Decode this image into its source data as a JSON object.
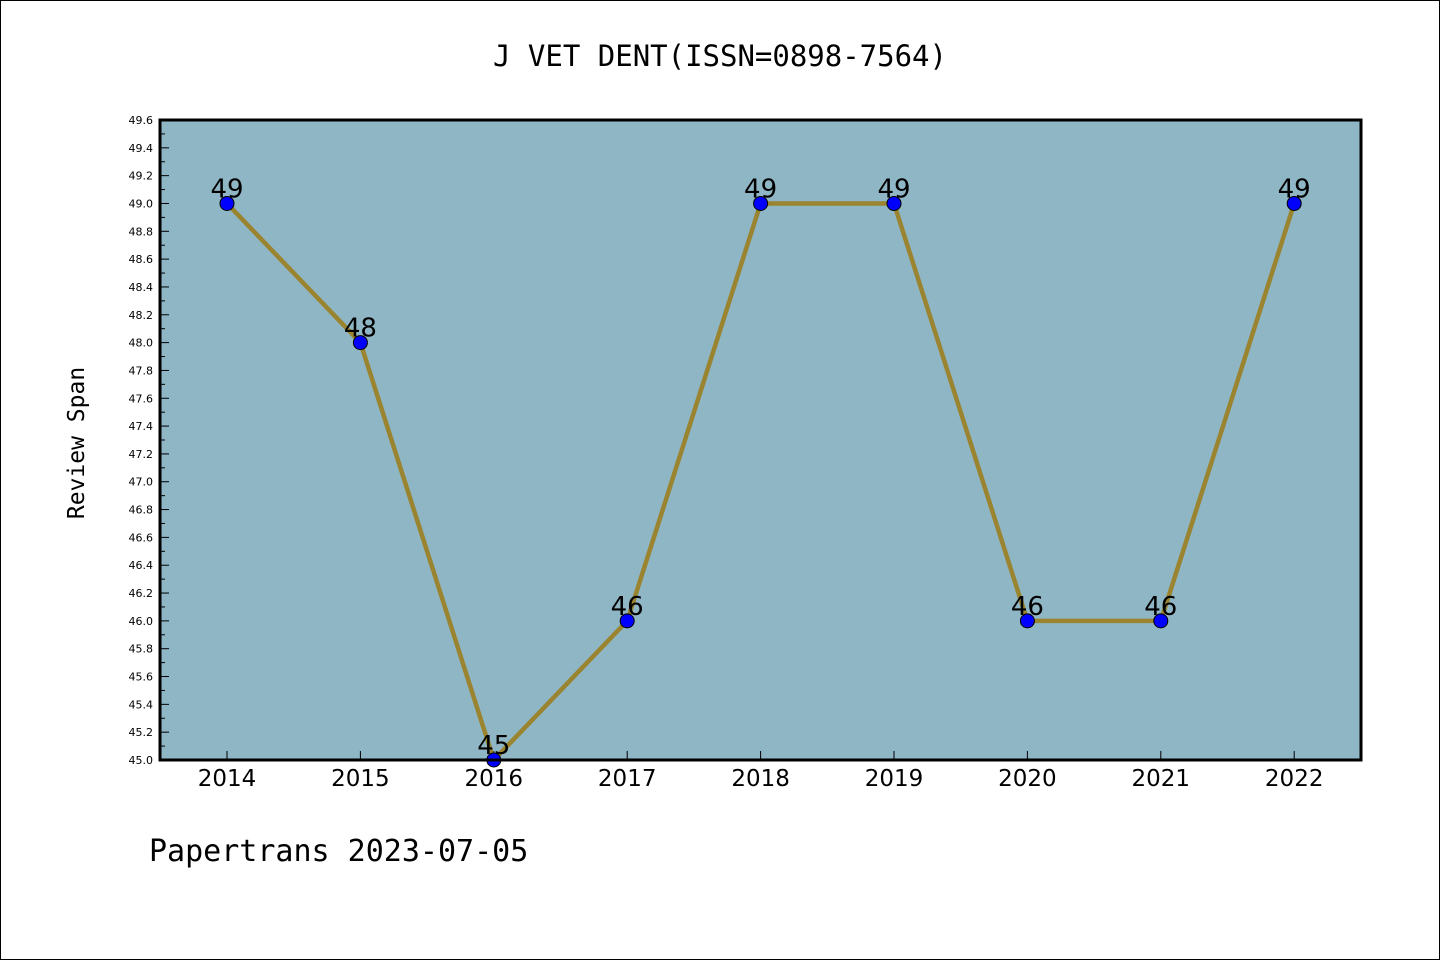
{
  "chart_data": {
    "type": "line",
    "title": "J VET DENT(ISSN=0898-7564)",
    "xlabel": "",
    "ylabel": "Review Span",
    "categories": [
      "2014",
      "2015",
      "2016",
      "2017",
      "2018",
      "2019",
      "2020",
      "2021",
      "2022"
    ],
    "series": [
      {
        "values": [
          49,
          48,
          45,
          46,
          49,
          49,
          46,
          46,
          49
        ]
      }
    ],
    "data_labels": [
      "49",
      "48",
      "45",
      "46",
      "49",
      "49",
      "46",
      "46",
      "49"
    ],
    "ylim": [
      45.0,
      49.6
    ],
    "y_ticks": [
      "45.0",
      "45.2",
      "45.4",
      "45.6",
      "45.8",
      "46.0",
      "46.2",
      "46.4",
      "46.6",
      "46.8",
      "47.0",
      "47.2",
      "47.4",
      "47.6",
      "47.8",
      "48.0",
      "48.2",
      "48.4",
      "48.6",
      "48.8",
      "49.0",
      "49.2",
      "49.4",
      "49.6"
    ],
    "grid": false,
    "legend": "none",
    "colors": {
      "plot_background": "#8fb6c5",
      "line": "#9a8430",
      "marker": "#0000ff"
    }
  },
  "footer": {
    "text": "Papertrans 2023-07-05"
  }
}
